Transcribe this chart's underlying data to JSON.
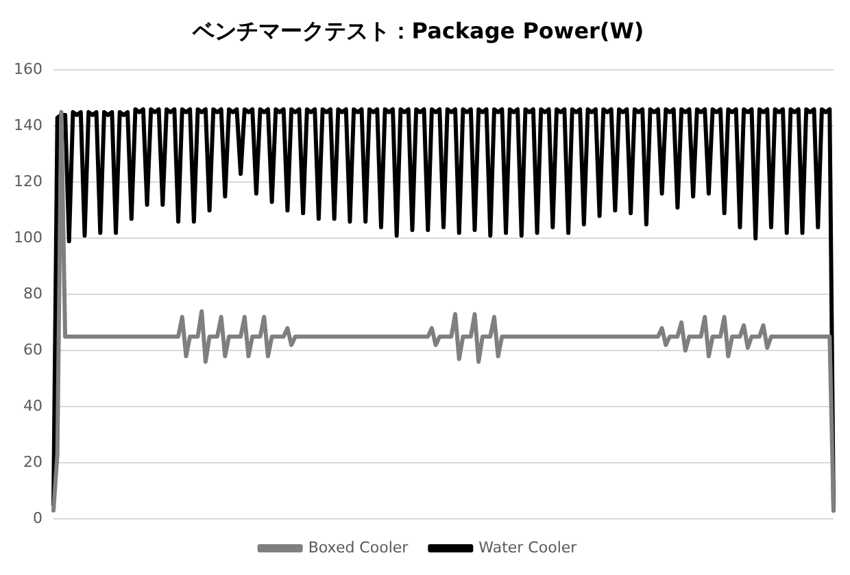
{
  "chart_data": {
    "type": "line",
    "title": "ベンチマークテスト：Package Power(W)",
    "categories": [
      null,
      null,
      null,
      null,
      null,
      null,
      null,
      null,
      null,
      null,
      null,
      null,
      null,
      null,
      null,
      null,
      null,
      null,
      null,
      null,
      null,
      null,
      null,
      null,
      null,
      null,
      null,
      null,
      null,
      null,
      null,
      null,
      null,
      null,
      null,
      null,
      null,
      null,
      null,
      null,
      null,
      null,
      null,
      null,
      null,
      null,
      null,
      null,
      null,
      null,
      null,
      null,
      null,
      null,
      null,
      null,
      null,
      null,
      null,
      null,
      null,
      null,
      null,
      null,
      null,
      null,
      null,
      null,
      null,
      null,
      null,
      null,
      null,
      null,
      null,
      null,
      null,
      null,
      null,
      null,
      null,
      null,
      null,
      null,
      null,
      null,
      null,
      null,
      null,
      null,
      null,
      null,
      null,
      null,
      null,
      null,
      null,
      null,
      null,
      null,
      null,
      null,
      null,
      null,
      null,
      null,
      null,
      null,
      null,
      null,
      null,
      null,
      null,
      null,
      null,
      null,
      null,
      null,
      null,
      null,
      null,
      null,
      null,
      null,
      null,
      null,
      null,
      null,
      null,
      null,
      null,
      null,
      null,
      null,
      null,
      null,
      null,
      null,
      null,
      null,
      null,
      null,
      null,
      null,
      null,
      null,
      null,
      null,
      null,
      null,
      null,
      null,
      null,
      null,
      null,
      null,
      null,
      null,
      null,
      null,
      null,
      null,
      null,
      null,
      null,
      null,
      null,
      null,
      null,
      null,
      null,
      null,
      null,
      null,
      null,
      null,
      null,
      null,
      null,
      null,
      null,
      null,
      null,
      null,
      null,
      null,
      null,
      null,
      null,
      null,
      null,
      null,
      null,
      null,
      null,
      null,
      null,
      null,
      null,
      null,
      null
    ],
    "series": [
      {
        "name": "Boxed Cooler",
        "color": "#7f7f7f",
        "values": [
          3,
          23,
          145,
          65,
          65,
          65,
          65,
          65,
          65,
          65,
          65,
          65,
          65,
          65,
          65,
          65,
          65,
          65,
          65,
          65,
          65,
          65,
          65,
          65,
          65,
          65,
          65,
          65,
          65,
          65,
          65,
          65,
          65,
          72,
          58,
          65,
          65,
          65,
          74,
          56,
          65,
          65,
          65,
          72,
          58,
          65,
          65,
          65,
          65,
          72,
          58,
          65,
          65,
          65,
          72,
          58,
          65,
          65,
          65,
          65,
          68,
          62,
          65,
          65,
          65,
          65,
          65,
          65,
          65,
          65,
          65,
          65,
          65,
          65,
          65,
          65,
          65,
          65,
          65,
          65,
          65,
          65,
          65,
          65,
          65,
          65,
          65,
          65,
          65,
          65,
          65,
          65,
          65,
          65,
          65,
          65,
          65,
          68,
          62,
          65,
          65,
          65,
          65,
          73,
          57,
          65,
          65,
          65,
          73,
          56,
          65,
          65,
          65,
          72,
          58,
          65,
          65,
          65,
          65,
          65,
          65,
          65,
          65,
          65,
          65,
          65,
          65,
          65,
          65,
          65,
          65,
          65,
          65,
          65,
          65,
          65,
          65,
          65,
          65,
          65,
          65,
          65,
          65,
          65,
          65,
          65,
          65,
          65,
          65,
          65,
          65,
          65,
          65,
          65,
          65,
          65,
          68,
          62,
          65,
          65,
          65,
          70,
          60,
          65,
          65,
          65,
          65,
          72,
          58,
          65,
          65,
          65,
          72,
          58,
          65,
          65,
          65,
          69,
          61,
          65,
          65,
          65,
          69,
          61,
          65,
          65,
          65,
          65,
          65,
          65,
          65,
          65,
          65,
          65,
          65,
          65,
          65,
          65,
          65,
          65,
          3
        ]
      },
      {
        "name": "Water Cooler",
        "color": "#000000",
        "values": [
          5,
          143,
          144,
          144,
          99,
          145,
          144,
          145,
          101,
          145,
          144,
          145,
          102,
          145,
          144,
          145,
          102,
          145,
          144,
          145,
          107,
          146,
          145,
          146,
          112,
          146,
          145,
          146,
          112,
          146,
          145,
          146,
          106,
          146,
          145,
          146,
          106,
          146,
          145,
          146,
          110,
          146,
          145,
          146,
          115,
          146,
          145,
          146,
          123,
          146,
          145,
          146,
          116,
          146,
          145,
          146,
          113,
          146,
          145,
          146,
          110,
          146,
          145,
          146,
          109,
          146,
          145,
          146,
          107,
          146,
          145,
          146,
          107,
          146,
          145,
          146,
          106,
          146,
          145,
          146,
          106,
          146,
          145,
          146,
          104,
          146,
          145,
          146,
          101,
          146,
          145,
          146,
          103,
          146,
          145,
          146,
          103,
          146,
          145,
          146,
          104,
          146,
          145,
          146,
          102,
          146,
          145,
          146,
          103,
          146,
          145,
          146,
          101,
          146,
          145,
          146,
          102,
          146,
          145,
          146,
          101,
          146,
          145,
          146,
          102,
          146,
          145,
          146,
          104,
          146,
          145,
          146,
          102,
          146,
          145,
          146,
          105,
          146,
          145,
          146,
          108,
          146,
          145,
          146,
          110,
          146,
          145,
          146,
          109,
          146,
          145,
          146,
          105,
          146,
          145,
          146,
          116,
          146,
          145,
          146,
          111,
          146,
          145,
          146,
          115,
          146,
          145,
          146,
          116,
          146,
          145,
          146,
          109,
          146,
          145,
          146,
          104,
          146,
          145,
          146,
          100,
          146,
          145,
          146,
          104,
          146,
          145,
          146,
          102,
          146,
          145,
          146,
          102,
          146,
          145,
          146,
          104,
          146,
          145,
          146,
          3
        ]
      }
    ],
    "ylim": [
      0,
      160
    ],
    "yticks": [
      0,
      20,
      40,
      60,
      80,
      100,
      120,
      140,
      160
    ],
    "grid": "y",
    "legend": "bottom"
  }
}
